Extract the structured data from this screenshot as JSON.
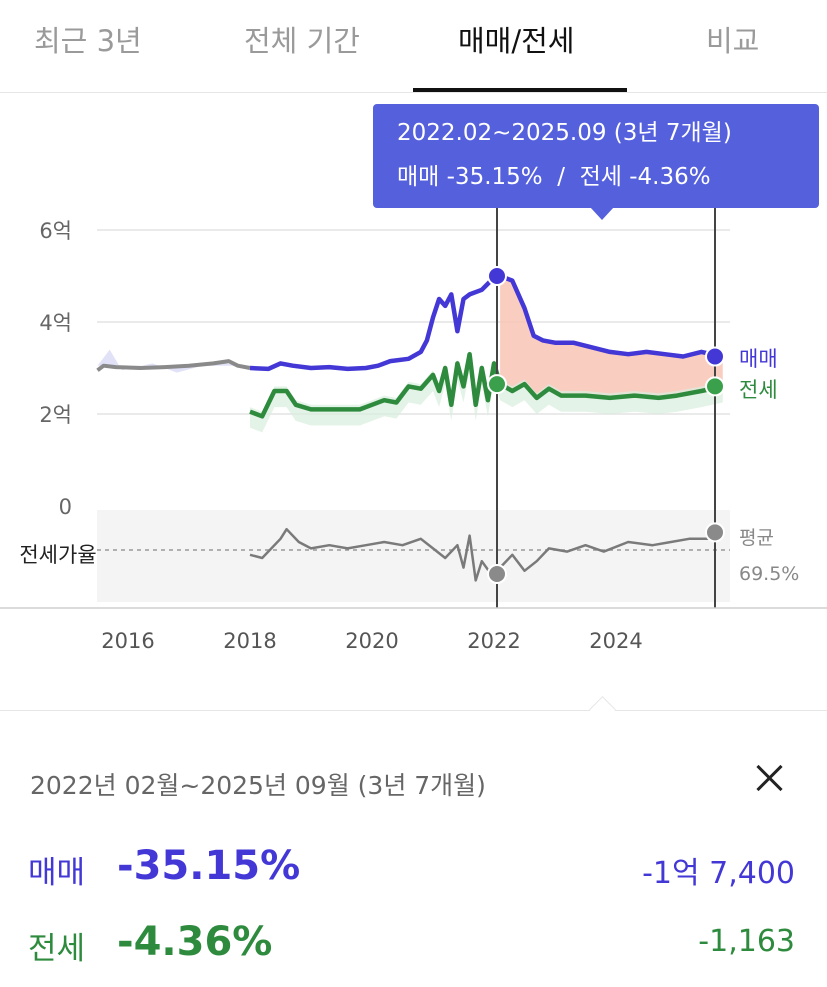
{
  "tabs": [
    {
      "label": "최근 3년",
      "active": false
    },
    {
      "label": "전체 기간",
      "active": false
    },
    {
      "label": "매매/전세",
      "active": true
    },
    {
      "label": "비교",
      "active": false
    }
  ],
  "colors": {
    "sale": "#4338d6",
    "jeonse": "#2e8b3e",
    "ratio": "#8a8a8a",
    "tooltip_bg": "#5560dd",
    "fill": "#f9c4b6"
  },
  "tooltip": {
    "line1": "2022.02~2025.09 (3년 7개월)",
    "line2": "매매 -35.15%  /  전세 -4.36%"
  },
  "chart_data": {
    "type": "line",
    "x_ticks": [
      "2016",
      "2018",
      "2020",
      "2022",
      "2024"
    ],
    "y_ticks": [
      "6억",
      "4억",
      "2억",
      "0"
    ],
    "ylim": [
      0,
      6
    ],
    "xlim": [
      2015.5,
      2025.9
    ],
    "ratio_label": "전세가율",
    "avg_label": "평균",
    "avg_value": "69.5%",
    "highlight_range": [
      "2022.02",
      "2025.09"
    ],
    "series": [
      {
        "name": "매매",
        "values": [
          [
            2015.5,
            2.95
          ],
          [
            2015.6,
            3.05
          ],
          [
            2015.8,
            3.02
          ],
          [
            2016.2,
            3.0
          ],
          [
            2016.6,
            3.02
          ],
          [
            2017.0,
            3.05
          ],
          [
            2017.4,
            3.1
          ],
          [
            2017.65,
            3.15
          ],
          [
            2017.8,
            3.05
          ],
          [
            2018.0,
            3.0
          ],
          [
            2018.3,
            2.98
          ],
          [
            2018.5,
            3.1
          ],
          [
            2018.7,
            3.05
          ],
          [
            2019.0,
            3.0
          ],
          [
            2019.3,
            3.02
          ],
          [
            2019.6,
            2.98
          ],
          [
            2019.9,
            3.0
          ],
          [
            2020.1,
            3.05
          ],
          [
            2020.3,
            3.15
          ],
          [
            2020.6,
            3.2
          ],
          [
            2020.8,
            3.35
          ],
          [
            2020.9,
            3.6
          ],
          [
            2021.0,
            4.1
          ],
          [
            2021.1,
            4.5
          ],
          [
            2021.2,
            4.35
          ],
          [
            2021.3,
            4.6
          ],
          [
            2021.4,
            3.8
          ],
          [
            2021.5,
            4.5
          ],
          [
            2021.6,
            4.6
          ],
          [
            2021.8,
            4.7
          ],
          [
            2021.95,
            4.9
          ],
          [
            2022.1,
            5.0
          ],
          [
            2022.3,
            4.9
          ],
          [
            2022.5,
            4.3
          ],
          [
            2022.65,
            3.7
          ],
          [
            2022.8,
            3.6
          ],
          [
            2023.0,
            3.55
          ],
          [
            2023.3,
            3.55
          ],
          [
            2023.6,
            3.45
          ],
          [
            2023.9,
            3.35
          ],
          [
            2024.2,
            3.3
          ],
          [
            2024.5,
            3.35
          ],
          [
            2024.8,
            3.3
          ],
          [
            2025.1,
            3.25
          ],
          [
            2025.4,
            3.35
          ],
          [
            2025.75,
            3.25
          ]
        ]
      },
      {
        "name": "전세",
        "values": [
          [
            2018.0,
            2.05
          ],
          [
            2018.2,
            1.95
          ],
          [
            2018.4,
            2.5
          ],
          [
            2018.6,
            2.5
          ],
          [
            2018.75,
            2.2
          ],
          [
            2019.0,
            2.1
          ],
          [
            2019.5,
            2.1
          ],
          [
            2019.8,
            2.1
          ],
          [
            2020.0,
            2.2
          ],
          [
            2020.2,
            2.3
          ],
          [
            2020.4,
            2.25
          ],
          [
            2020.6,
            2.6
          ],
          [
            2020.8,
            2.55
          ],
          [
            2021.0,
            2.85
          ],
          [
            2021.1,
            2.5
          ],
          [
            2021.2,
            3.0
          ],
          [
            2021.3,
            2.2
          ],
          [
            2021.4,
            3.1
          ],
          [
            2021.5,
            2.6
          ],
          [
            2021.6,
            3.3
          ],
          [
            2021.7,
            2.2
          ],
          [
            2021.8,
            3.0
          ],
          [
            2021.9,
            2.3
          ],
          [
            2022.0,
            3.1
          ],
          [
            2022.1,
            2.65
          ],
          [
            2022.3,
            2.5
          ],
          [
            2022.5,
            2.65
          ],
          [
            2022.7,
            2.35
          ],
          [
            2022.9,
            2.55
          ],
          [
            2023.1,
            2.4
          ],
          [
            2023.5,
            2.4
          ],
          [
            2023.9,
            2.35
          ],
          [
            2024.3,
            2.4
          ],
          [
            2024.7,
            2.35
          ],
          [
            2025.0,
            2.4
          ],
          [
            2025.4,
            2.5
          ],
          [
            2025.75,
            2.6
          ]
        ]
      },
      {
        "name": "전세가율",
        "values": [
          [
            2018.0,
            68
          ],
          [
            2018.2,
            67
          ],
          [
            2018.5,
            73
          ],
          [
            2018.6,
            76
          ],
          [
            2018.8,
            72
          ],
          [
            2019.0,
            70
          ],
          [
            2019.3,
            71
          ],
          [
            2019.6,
            70
          ],
          [
            2019.9,
            71
          ],
          [
            2020.2,
            72
          ],
          [
            2020.5,
            71
          ],
          [
            2020.8,
            73
          ],
          [
            2021.0,
            70
          ],
          [
            2021.2,
            67
          ],
          [
            2021.4,
            71
          ],
          [
            2021.5,
            64
          ],
          [
            2021.6,
            74
          ],
          [
            2021.7,
            60
          ],
          [
            2021.8,
            66
          ],
          [
            2021.95,
            62
          ],
          [
            2022.1,
            64
          ],
          [
            2022.3,
            68
          ],
          [
            2022.5,
            63
          ],
          [
            2022.7,
            66
          ],
          [
            2022.9,
            70
          ],
          [
            2023.2,
            69
          ],
          [
            2023.5,
            71
          ],
          [
            2023.8,
            69
          ],
          [
            2024.2,
            72
          ],
          [
            2024.6,
            71
          ],
          [
            2024.9,
            72
          ],
          [
            2025.2,
            73
          ],
          [
            2025.5,
            73
          ],
          [
            2025.75,
            75
          ]
        ]
      }
    ]
  },
  "summary": {
    "period": "2022년 02월~2025년 09월 (3년 7개월)",
    "rows": [
      {
        "label": "매매",
        "pct": "-35.15%",
        "amount": "-1억 7,400"
      },
      {
        "label": "전세",
        "pct": "-4.36%",
        "amount": "-1,163"
      }
    ]
  }
}
